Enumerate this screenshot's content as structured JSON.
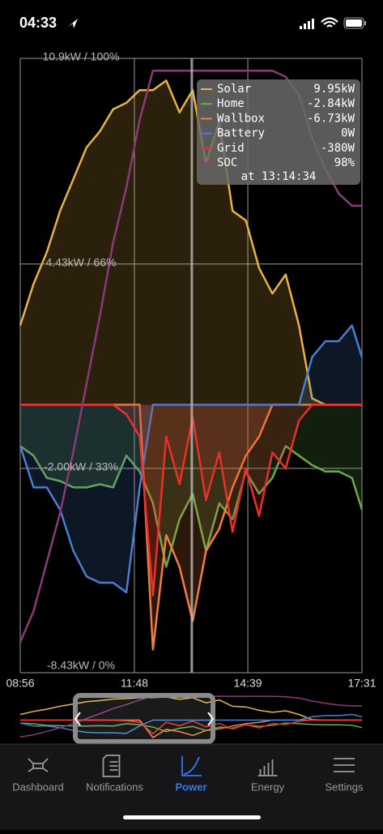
{
  "status_bar": {
    "time": "04:33"
  },
  "chart_data": {
    "type": "line",
    "x": [
      "08:56",
      "09:16",
      "09:36",
      "09:56",
      "10:16",
      "10:36",
      "10:56",
      "11:16",
      "11:36",
      "11:56",
      "12:16",
      "12:36",
      "12:56",
      "13:16",
      "13:36",
      "13:56",
      "14:16",
      "14:36",
      "14:56",
      "15:16",
      "15:36",
      "15:56",
      "16:16",
      "16:36",
      "16:56",
      "17:16",
      "17:31"
    ],
    "xlim": [
      "08:56",
      "17:31"
    ],
    "xticks": [
      "08:56",
      "11:48",
      "14:39",
      "17:31"
    ],
    "ylim": [
      -8.43,
      10.9
    ],
    "yticks": [
      {
        "value": 10.9,
        "label": "10.9kW / 100%"
      },
      {
        "value": 4.43,
        "label": "4.43kW / 66%"
      },
      {
        "value": -2,
        "label": "-2.00kW / 33%"
      },
      {
        "value": -8.43,
        "label": "-8.43kW / 0%"
      }
    ],
    "y2lim": [
      0,
      100
    ],
    "grid": true,
    "series": [
      {
        "name": "Solar",
        "color": "#e8b341",
        "values": [
          2.5,
          3.8,
          4.8,
          6.1,
          7.1,
          8.1,
          8.6,
          9.3,
          9.5,
          9.9,
          9.9,
          10.2,
          9.2,
          9.9,
          7.6,
          8.9,
          6.1,
          5.8,
          4.3,
          3.5,
          4.1,
          2.5,
          0.2,
          0,
          0,
          0,
          0
        ]
      },
      {
        "name": "Home",
        "color": "#6aaa4a",
        "values": [
          -1.3,
          -1.6,
          -2.3,
          -2.4,
          -2.6,
          -2.6,
          -2.5,
          -2.6,
          -1.6,
          -2.1,
          -3.1,
          -5.1,
          -3.6,
          -2.8,
          -4.6,
          -3.1,
          -3.6,
          -2.1,
          -2.8,
          -2.3,
          -1.3,
          -1.6,
          -1.9,
          -2.1,
          -2.1,
          -2.3,
          -3.3
        ]
      },
      {
        "name": "Wallbox",
        "color": "#f0803c",
        "values": [
          0,
          0,
          0,
          0,
          0,
          0,
          0,
          0,
          0,
          0,
          -7.7,
          -4.1,
          -5.1,
          -6.8,
          -4.6,
          -3.9,
          -2.6,
          -1.6,
          -1,
          0,
          0,
          0,
          0,
          0,
          0,
          0,
          0
        ]
      },
      {
        "name": "Battery",
        "color": "#4a7fd0",
        "values": [
          -1.3,
          -2.6,
          -2.6,
          -3.3,
          -4.6,
          -5.4,
          -5.6,
          -5.6,
          -5.9,
          -2.6,
          0,
          0,
          0,
          0,
          0,
          0,
          0,
          0,
          0,
          0,
          0,
          0,
          1.5,
          2,
          2,
          2.5,
          1.5
        ]
      },
      {
        "name": "Grid",
        "color": "#e8302c",
        "values": [
          0,
          0,
          0,
          0,
          0,
          0,
          0,
          0,
          -0.3,
          -1,
          -6,
          -1,
          -2.5,
          -0.4,
          -3,
          -1.5,
          -4,
          -2,
          -3.5,
          -1.5,
          -2,
          -0.5,
          0,
          0,
          0,
          0,
          0
        ]
      },
      {
        "name": "SOC",
        "color": "#8a3a7a",
        "axis": "y2",
        "values": [
          5,
          10,
          18,
          26,
          36,
          47,
          58,
          70,
          79,
          90,
          98,
          98,
          98,
          98,
          98,
          98,
          98,
          98,
          98,
          98,
          97,
          94,
          87,
          82,
          78,
          76,
          76
        ]
      }
    ]
  },
  "tooltip": {
    "values": [
      "9.95kW",
      "-2.84kW",
      "-6.73kW",
      "0W",
      "-380W",
      "98%"
    ],
    "time": "at 13:14:34"
  },
  "tab_bar": {
    "items": [
      "Dashboard",
      "Notifications",
      "Power",
      "Energy",
      "Settings"
    ],
    "active": 2
  }
}
